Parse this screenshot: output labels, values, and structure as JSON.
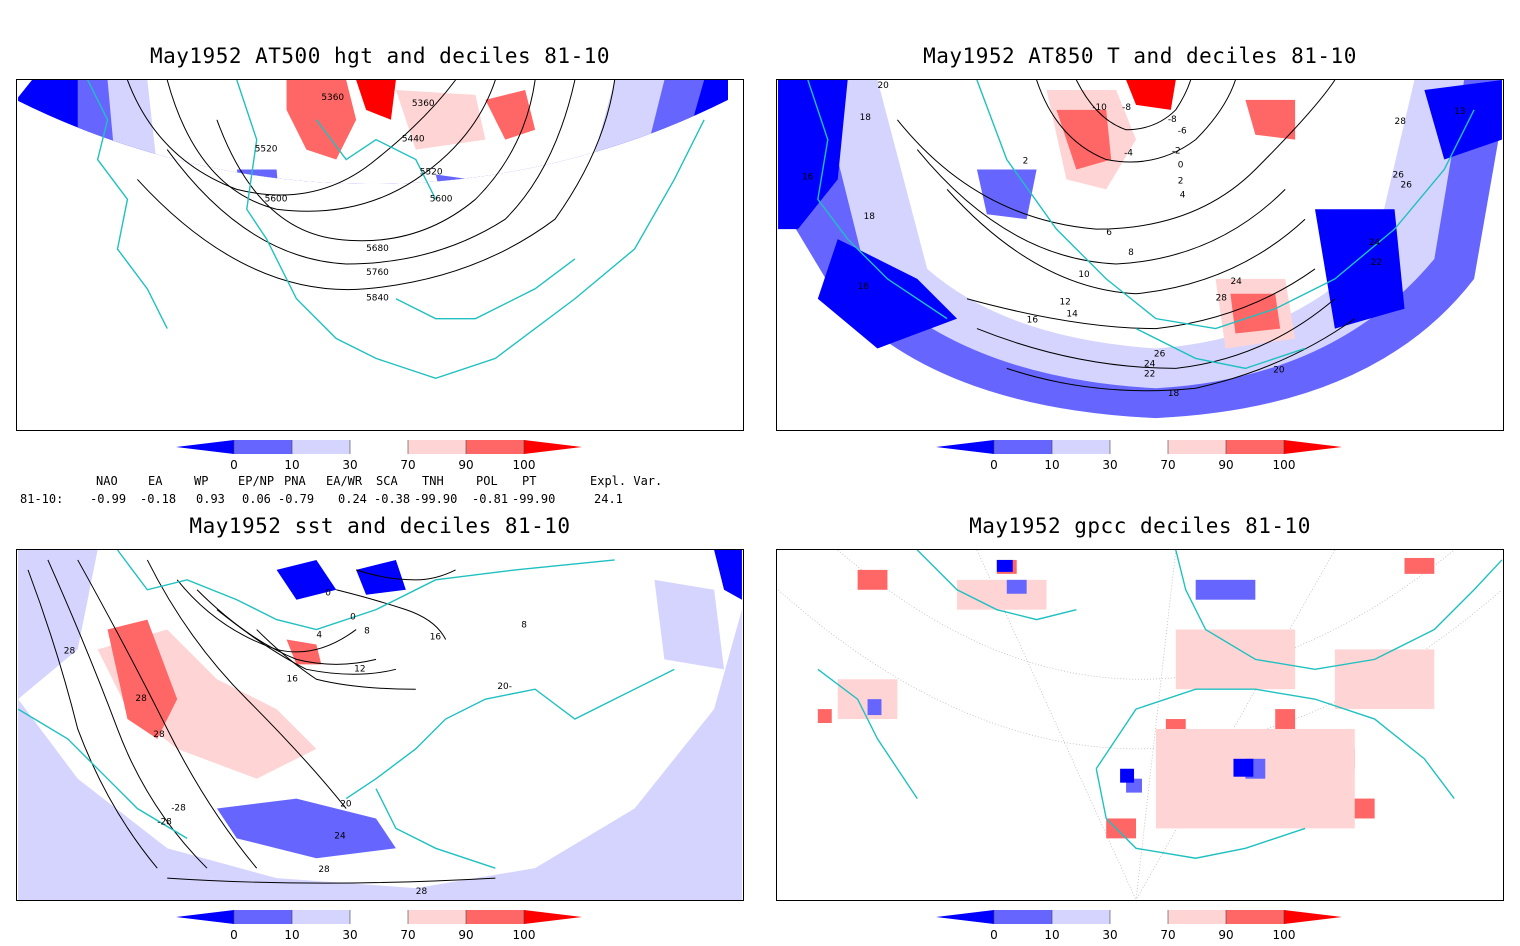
{
  "panels": [
    {
      "title": "May1952 AT500 hgt and deciles 81-10"
    },
    {
      "title": "May1952 AT850 T and deciles 81-10"
    },
    {
      "title": "May1952 sst and deciles 81-10"
    },
    {
      "title": "May1952 gpcc deciles 81-10"
    }
  ],
  "colorbar": {
    "ticks": [
      "0",
      "10",
      "30",
      "70",
      "90",
      "100"
    ],
    "colors": [
      "#0000ff",
      "#6666ff",
      "#d4d4ff",
      "#ffffff",
      "#ffd4d4",
      "#ff6666",
      "#ff0000"
    ]
  },
  "indices": {
    "names": [
      "NAO",
      "EA",
      "WP",
      "EP/NP",
      "PNA",
      "EA/WR",
      "SCA",
      "TNH",
      "POL",
      "PT",
      "Expl. Var."
    ],
    "row_label": "81-10:",
    "values": [
      "-0.99",
      "-0.18",
      "0.93",
      "0.06",
      "-0.79",
      "0.24",
      "-0.38",
      "-99.90",
      "-0.81",
      "-99.90",
      "24.1"
    ]
  },
  "contour_labels": {
    "hgt": [
      "5360",
      "5360",
      "5440",
      "5520",
      "5520",
      "5600",
      "5600",
      "5680",
      "5760",
      "5840"
    ],
    "t850": [
      "20",
      "18",
      "18",
      "16",
      "16",
      "12",
      "14",
      "16",
      "-10",
      "-8",
      "-8",
      "-6",
      "-4",
      "-2",
      "0",
      "2",
      "2",
      "4",
      "6",
      "8",
      "10",
      "24",
      "28",
      "26",
      "24",
      "22",
      "20",
      "18",
      "28",
      "26",
      "26",
      "24",
      "22",
      "13"
    ],
    "sst": [
      "0",
      "0",
      "4",
      "8",
      "12",
      "16",
      "20",
      "24",
      "28",
      "28",
      "28",
      "28",
      "28",
      "-28",
      "-28",
      "16",
      "20-",
      "8"
    ]
  }
}
